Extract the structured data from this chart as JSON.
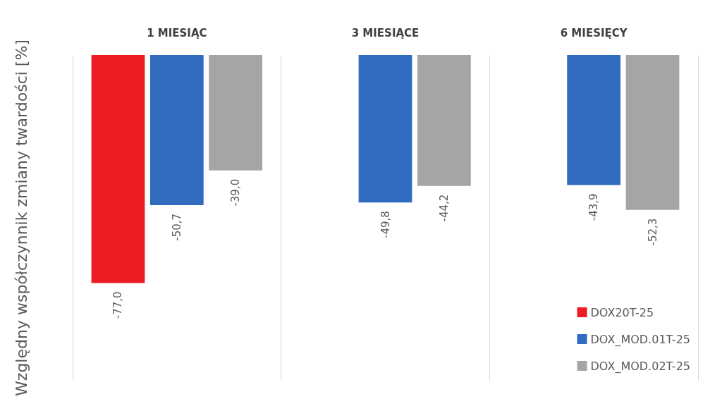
{
  "chart_data": {
    "type": "bar",
    "ylabel": "Względny współczynnik zmiany twardości [%]",
    "categories": [
      "1 MIESIĄC",
      "3 MIESIĄCE",
      "6 MIESIĘCY"
    ],
    "series": [
      {
        "name": "DOX20T-25",
        "color": "#ed1c24",
        "values": [
          -77.0,
          null,
          null
        ],
        "value_labels": [
          "-77,0",
          null,
          null
        ]
      },
      {
        "name": "DOX_MOD.01T-25",
        "color": "#316bbf",
        "values": [
          -50.7,
          -49.8,
          -43.9
        ],
        "value_labels": [
          "-50,7",
          "-49,8",
          "-43,9"
        ]
      },
      {
        "name": "DOX_MOD.02T-25",
        "color": "#a5a5a5",
        "values": [
          -39.0,
          -44.2,
          -52.3
        ],
        "value_labels": [
          "-39,0",
          "-44,2",
          "-52,3"
        ]
      }
    ],
    "ylim": [
      -110,
      0
    ],
    "tick_labels": "x",
    "grid": "x",
    "legend": "bottom right"
  }
}
